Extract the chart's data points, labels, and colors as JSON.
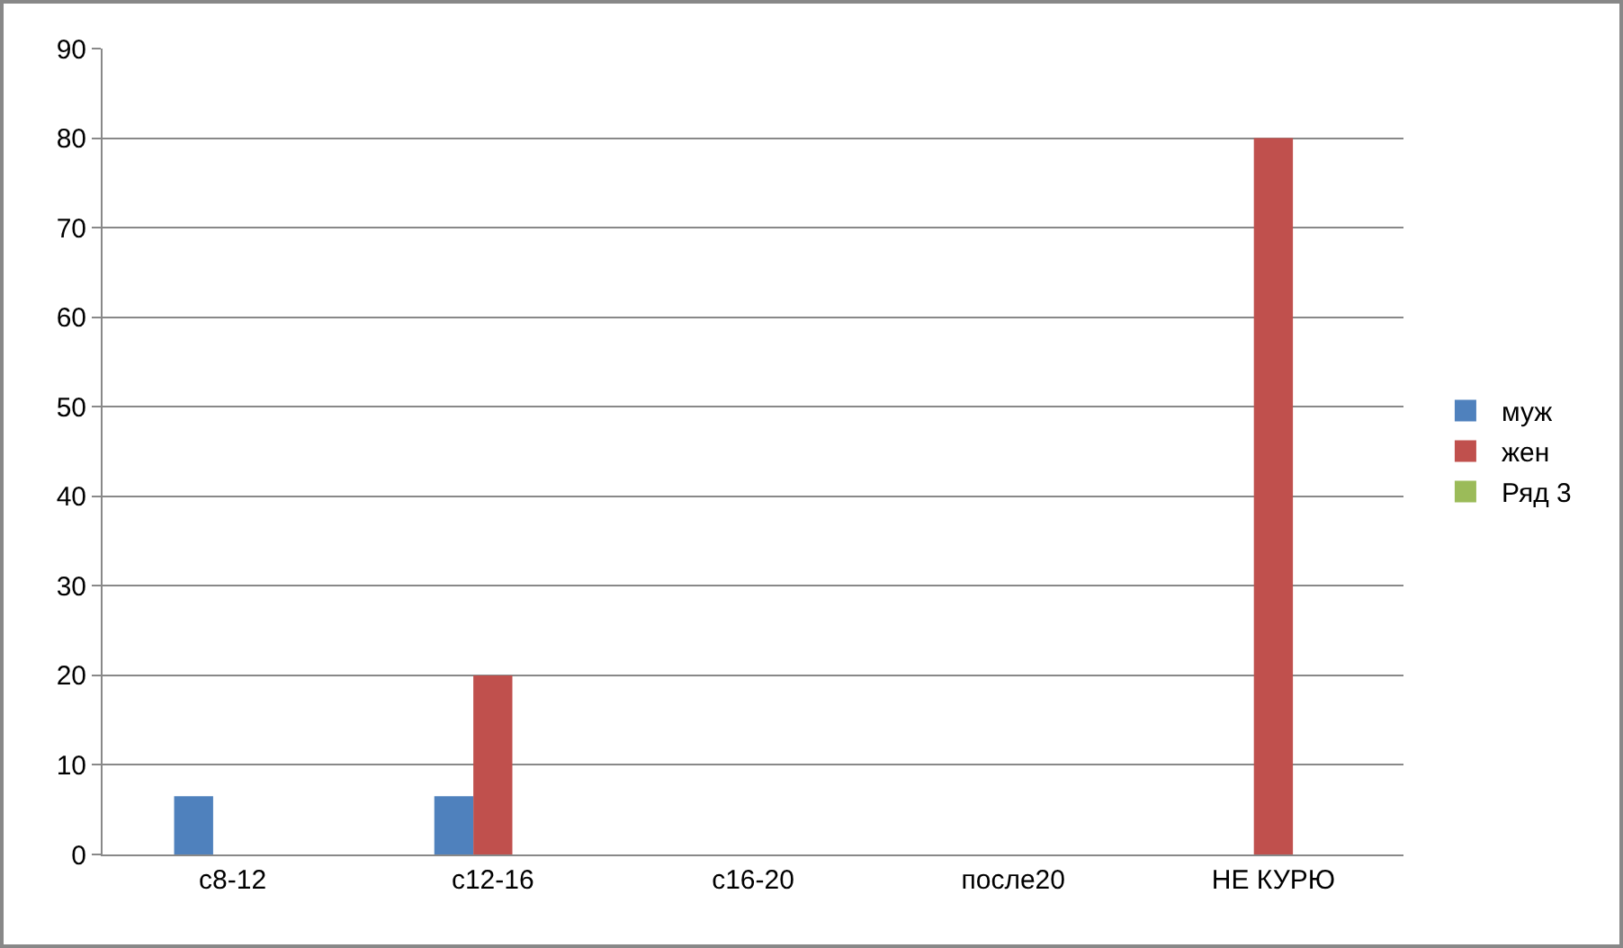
{
  "chart_data": {
    "type": "bar",
    "categories": [
      "с8-12",
      "с12-16",
      "с16-20",
      "после20",
      "НЕ КУРЮ"
    ],
    "series": [
      {
        "name": "муж",
        "color": "#4f81bd",
        "values": [
          6.5,
          6.5,
          null,
          null,
          null
        ]
      },
      {
        "name": "жен",
        "color": "#c0504d",
        "values": [
          null,
          20,
          null,
          null,
          80
        ]
      },
      {
        "name": "Ряд 3",
        "color": "#9bbb59",
        "values": [
          null,
          null,
          null,
          null,
          null
        ]
      }
    ],
    "ylim": [
      0,
      90
    ],
    "yticks": [
      0,
      10,
      20,
      30,
      40,
      50,
      60,
      70,
      80,
      90
    ],
    "grid": "y",
    "legend": "right"
  }
}
